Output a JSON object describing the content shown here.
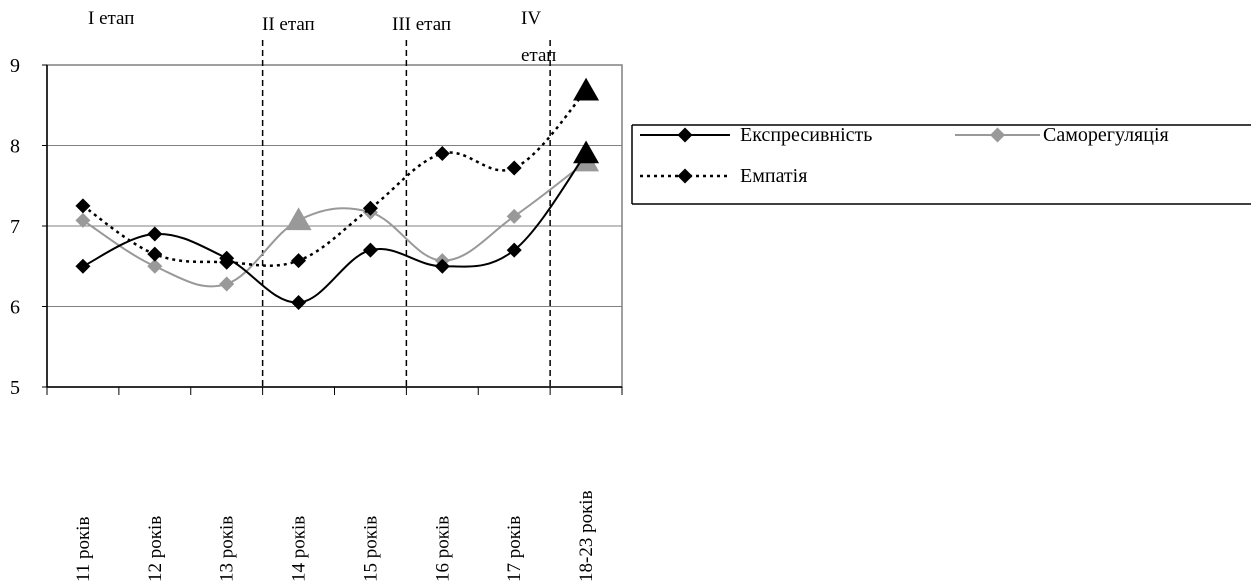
{
  "chart_data": {
    "type": "line",
    "title": "",
    "xlabel": "",
    "ylabel": "",
    "ylim": [
      5,
      9
    ],
    "yticks": [
      5,
      6,
      7,
      8,
      9
    ],
    "categories": [
      "11 років",
      "12 років",
      "13 років",
      "14 років",
      "15 років",
      "16 років",
      "17 років",
      "18-23 років"
    ],
    "series": [
      {
        "name": "Експресивність",
        "values": [
          6.5,
          6.9,
          6.6,
          6.05,
          6.7,
          6.5,
          6.7,
          7.9
        ],
        "color": "#000000",
        "dash": "solid",
        "last_marker": "triangle"
      },
      {
        "name": "Саморегуляція",
        "values": [
          7.07,
          6.5,
          6.28,
          7.07,
          7.17,
          6.57,
          7.12,
          7.8
        ],
        "color": "#999999",
        "dash": "solid",
        "last_marker": "triangle",
        "triangle_marker_index": 3
      },
      {
        "name": "Емпатія",
        "values": [
          7.25,
          6.65,
          6.55,
          6.57,
          7.22,
          7.9,
          7.72,
          8.68
        ],
        "color": "#000000",
        "dash": "dotted",
        "last_marker": "triangle"
      }
    ],
    "stages": [
      "I етап",
      "II етап",
      "III етап",
      "IV етап"
    ],
    "stage_boundaries_after_category": [
      2,
      4,
      6
    ],
    "grid": "horizontal",
    "legend_position": "right"
  }
}
